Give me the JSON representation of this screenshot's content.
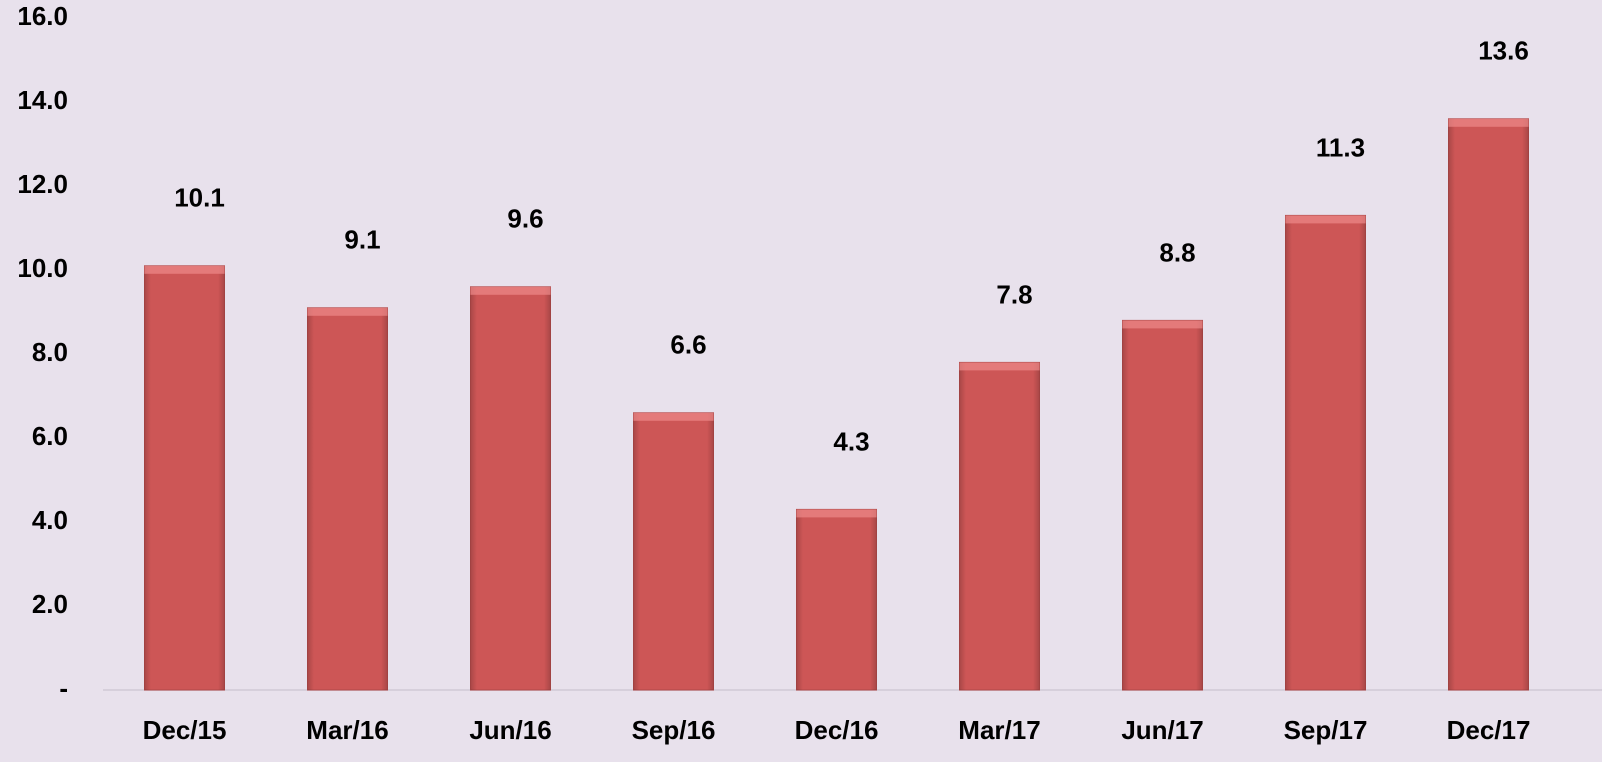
{
  "chart_data": {
    "type": "bar",
    "categories": [
      "Dec/15",
      "Mar/16",
      "Jun/16",
      "Sep/16",
      "Dec/16",
      "Mar/17",
      "Jun/17",
      "Sep/17",
      "Dec/17"
    ],
    "values": [
      10.1,
      9.1,
      9.6,
      6.6,
      4.3,
      7.8,
      8.8,
      11.3,
      13.6
    ],
    "color": "#cd5656",
    "ylim": [
      0,
      16
    ],
    "yticks": [
      {
        "value": 0,
        "label": "-"
      },
      {
        "value": 2,
        "label": "2.0"
      },
      {
        "value": 4,
        "label": "4.0"
      },
      {
        "value": 6,
        "label": "6.0"
      },
      {
        "value": 8,
        "label": "8.0"
      },
      {
        "value": 10,
        "label": "10.0"
      },
      {
        "value": 12,
        "label": "12.0"
      },
      {
        "value": 14,
        "label": "14.0"
      },
      {
        "value": 16,
        "label": "16.0"
      }
    ],
    "grid": false
  }
}
